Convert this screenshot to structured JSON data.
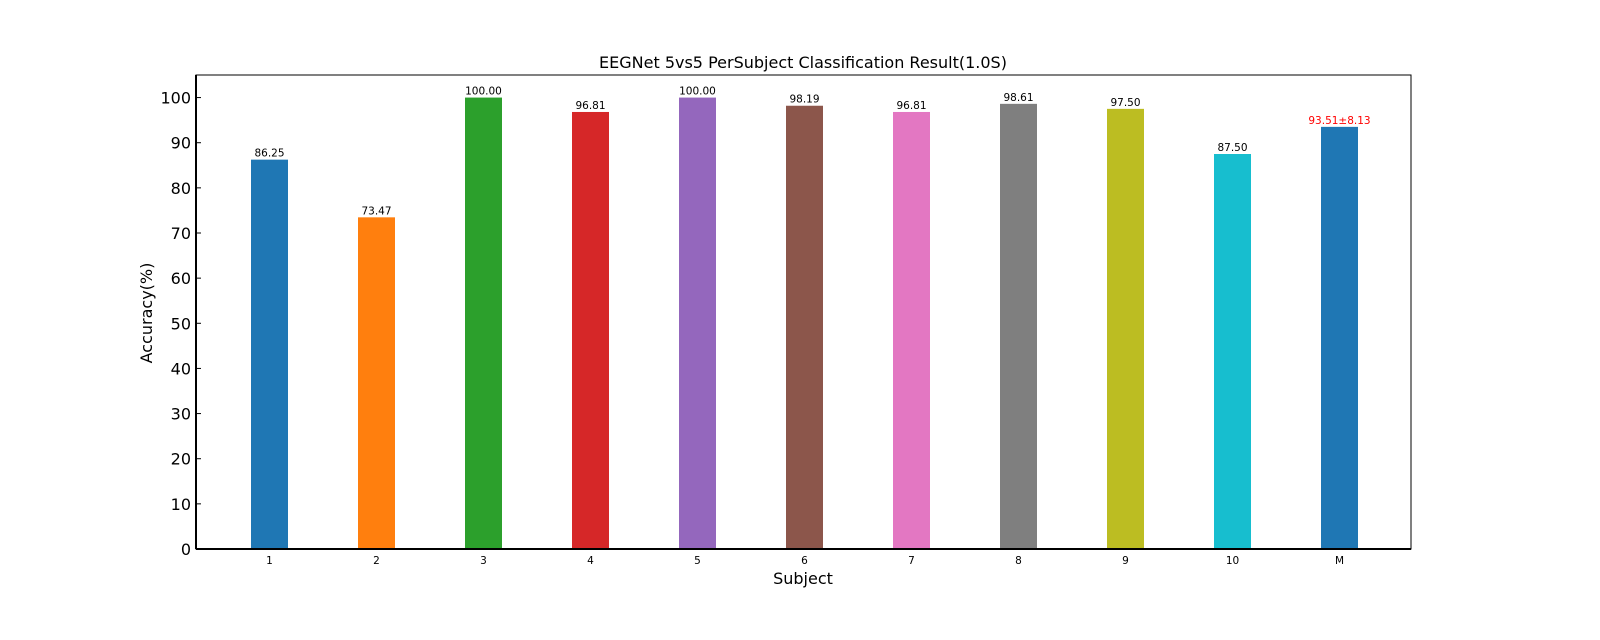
{
  "chart_data": {
    "type": "bar",
    "title": "EEGNet 5vs5 PerSubject Classification Result(1.0S)",
    "xlabel": "Subject",
    "ylabel": "Accuracy(%)",
    "ylim": [
      0,
      105
    ],
    "yticks": [
      0,
      10,
      20,
      30,
      40,
      50,
      60,
      70,
      80,
      90,
      100
    ],
    "grid": false,
    "categories": [
      "1",
      "2",
      "3",
      "4",
      "5",
      "6",
      "7",
      "8",
      "9",
      "10",
      "M"
    ],
    "values": [
      86.25,
      73.47,
      100.0,
      96.81,
      100.0,
      98.19,
      96.81,
      98.61,
      97.5,
      87.5,
      93.51
    ],
    "value_labels": [
      "86.25",
      "73.47",
      "100.00",
      "96.81",
      "100.00",
      "98.19",
      "96.81",
      "98.61",
      "97.50",
      "87.50",
      "93.51±8.13"
    ],
    "colors": [
      "#1f77b4",
      "#ff7f0e",
      "#2ca02c",
      "#d62728",
      "#9467bd",
      "#8c564b",
      "#e377c2",
      "#7f7f7f",
      "#bcbd22",
      "#17becf",
      "#1f77b4"
    ],
    "highlight_label_index": 10,
    "highlight_label_color": "#ff0000"
  }
}
